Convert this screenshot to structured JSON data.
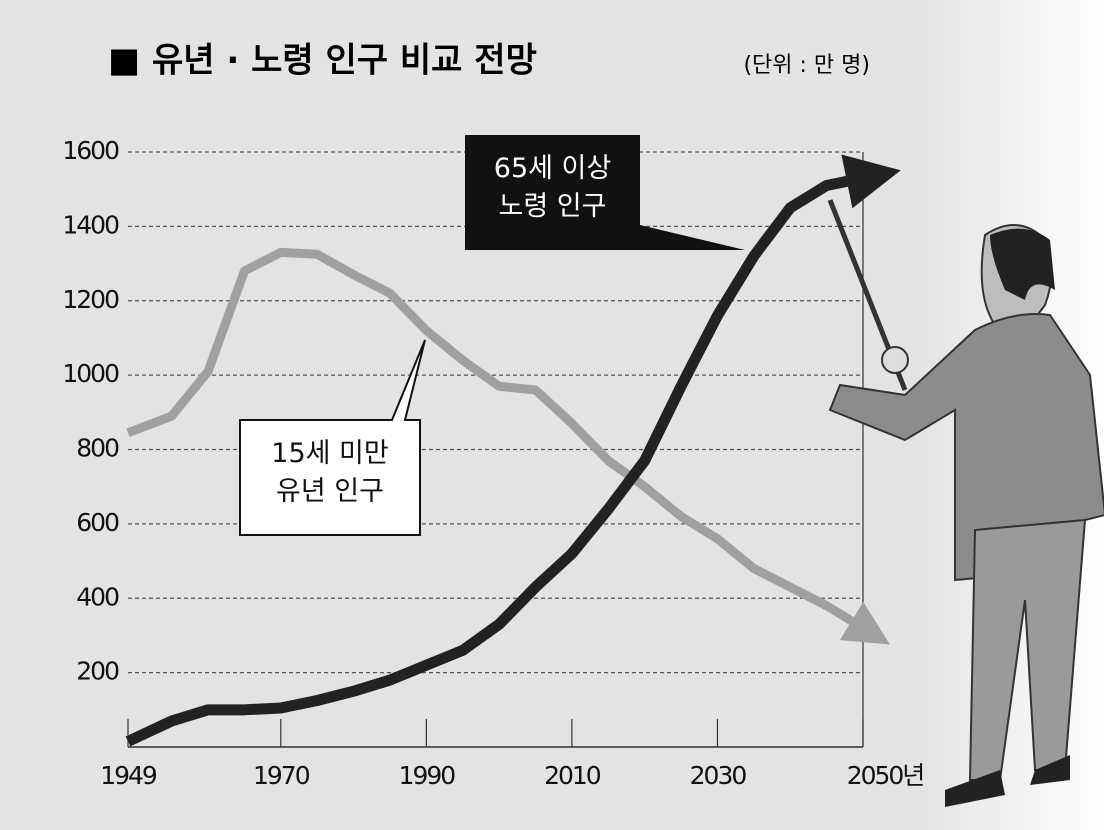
{
  "chart_data": {
    "type": "line",
    "title": "■ 유년 · 노령 인구 비교 전망",
    "subtitle": "(단위 : 만 명)",
    "x": [
      1949,
      1955,
      1960,
      1965,
      1970,
      1975,
      1980,
      1985,
      1990,
      1995,
      2000,
      2005,
      2010,
      2015,
      2020,
      2025,
      2030,
      2035,
      2040,
      2045,
      2050
    ],
    "xlim": [
      1949,
      2050
    ],
    "xticks": [
      1949,
      1970,
      1990,
      2010,
      2030,
      {
        "value": 2050,
        "label": "2050년"
      }
    ],
    "ylim": [
      0,
      1600
    ],
    "yticks": [
      200,
      400,
      600,
      800,
      1000,
      1200,
      1400,
      1600
    ],
    "grid": true,
    "series": [
      {
        "name": "15세 미만\n유년 인구",
        "color": "#a0a0a0",
        "values": [
          845,
          890,
          1010,
          1280,
          1330,
          1325,
          1270,
          1220,
          1120,
          1040,
          970,
          960,
          870,
          770,
          700,
          620,
          560,
          480,
          430,
          380,
          320
        ]
      },
      {
        "name": "65세 이상\n노령 인구",
        "color": "#222222",
        "values": [
          15,
          70,
          100,
          100,
          105,
          125,
          150,
          180,
          220,
          260,
          330,
          430,
          520,
          640,
          770,
          970,
          1160,
          1320,
          1450,
          1510,
          1530
        ]
      }
    ]
  }
}
